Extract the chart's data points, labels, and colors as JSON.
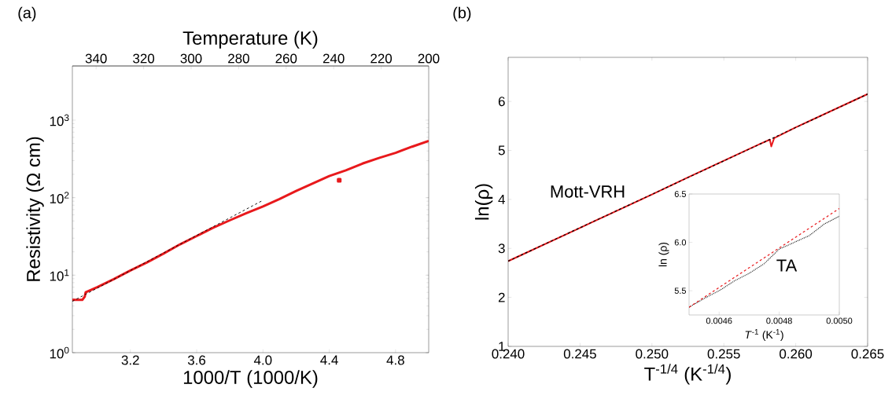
{
  "chart_data": [
    {
      "type": "line",
      "annotations": [
        "(a)"
      ],
      "xlabel": "1000/T (1000/K)",
      "ylabel": "Resistivity (Ω cm)",
      "x2label": "Temperature (K)",
      "log": "y",
      "xlim": [
        2.85,
        5.0
      ],
      "xticks": [
        3.2,
        3.6,
        {
          "value": 4.0,
          "label": "4.0"
        },
        4.4,
        4.8
      ],
      "x2lim": [
        350,
        200
      ],
      "x2ticks": [
        340,
        320,
        300,
        280,
        260,
        240,
        220,
        200
      ],
      "ylim": [
        1,
        5000
      ],
      "yticks": [
        {
          "value": 1,
          "label": "10$^{0}$"
        },
        {
          "value": 10,
          "label": "10$^{1}$"
        },
        {
          "value": 100,
          "label": "10$^{2}$"
        },
        {
          "value": 1000,
          "label": "10$^{3}$"
        }
      ],
      "series": [
        {
          "color": "#e8191c",
          "line_style": "solid",
          "x": [
            2.85,
            2.91,
            2.925,
            2.93,
            3.0,
            3.1,
            3.2,
            3.3,
            3.4,
            3.5,
            3.6,
            3.7,
            3.8,
            3.9,
            4.0,
            4.1,
            4.2,
            4.3,
            4.4,
            4.5,
            4.6,
            4.7,
            4.8,
            4.9,
            5.0
          ],
          "values": [
            4.8,
            4.8,
            5.3,
            6.0,
            7.0,
            8.9,
            11.5,
            14.6,
            19,
            25,
            32,
            41,
            51,
            63,
            77,
            96,
            122,
            152,
            190,
            225,
            275,
            325,
            378,
            455,
            540
          ]
        },
        {
          "type": "scatter",
          "color": "#e8191c",
          "marker": "square",
          "x": [
            4.46
          ],
          "values": [
            168
          ]
        },
        {
          "color": "#000000",
          "line_style": "dashed",
          "x": [
            2.85,
            3.99
          ],
          "values": [
            4.6,
            90
          ]
        }
      ]
    },
    {
      "type": "line",
      "annotations": [
        "(b)",
        "Mott-VRH"
      ],
      "xlabel": "T$^{-1/4}$ (K$^{-1/4}$)",
      "ylabel": "ln(ρ)",
      "xlim": [
        0.24,
        0.265
      ],
      "xticks": [
        {
          "value": 0.24,
          "label": "0.240"
        },
        {
          "value": 0.245,
          "label": "0.245"
        },
        {
          "value": 0.25,
          "label": "0.250"
        },
        {
          "value": 0.255,
          "label": "0.255"
        },
        {
          "value": 0.26,
          "label": "0.260"
        },
        {
          "value": 0.265,
          "label": "0.265"
        }
      ],
      "ylim": [
        1,
        6.9
      ],
      "yticks": [
        1,
        2,
        3,
        4,
        5,
        6
      ],
      "series": [
        {
          "color": "#e8191c",
          "line_style": "solid",
          "x": [
            0.24,
            0.2425,
            0.245,
            0.2475,
            0.25,
            0.2525,
            0.255,
            0.2575,
            0.2582,
            0.2583,
            0.2585,
            0.26,
            0.2625,
            0.265
          ],
          "values": [
            2.74,
            3.08,
            3.42,
            3.76,
            4.1,
            4.45,
            4.79,
            5.13,
            5.22,
            5.08,
            5.25,
            5.47,
            5.81,
            6.15
          ]
        },
        {
          "color": "#000000",
          "line_style": "dashed",
          "x": [
            0.24,
            0.265
          ],
          "values": [
            2.74,
            6.15
          ]
        }
      ]
    },
    {
      "type": "line",
      "annotations": [
        "TA"
      ],
      "xlabel": "*T*$^{-1}$ (K$^{-1}$)",
      "ylabel": "ln (ρ)",
      "xlim": [
        0.0045,
        0.005
      ],
      "xticks": [
        {
          "value": 0.0046,
          "label": "0.0046"
        },
        {
          "value": 0.0048,
          "label": "0.0048"
        },
        {
          "value": 0.005,
          "label": "0.0050"
        }
      ],
      "ylim": [
        5.25,
        6.5
      ],
      "yticks": [
        {
          "value": 5.5,
          "label": "5.5"
        },
        {
          "value": 6.0,
          "label": "6.0"
        },
        {
          "value": 6.5,
          "label": "6.5"
        }
      ],
      "series": [
        {
          "color": "#333333",
          "line_style": "dotted",
          "x": [
            0.0045,
            0.00455,
            0.0046,
            0.00465,
            0.0047,
            0.00475,
            0.0048,
            0.00485,
            0.0049,
            0.00495,
            0.005
          ],
          "values": [
            5.33,
            5.42,
            5.5,
            5.6,
            5.68,
            5.78,
            5.93,
            6.0,
            6.07,
            6.19,
            6.27
          ]
        },
        {
          "color": "#e8191c",
          "line_style": "dashed",
          "x": [
            0.0045,
            0.005
          ],
          "values": [
            5.33,
            6.35
          ]
        }
      ]
    }
  ]
}
